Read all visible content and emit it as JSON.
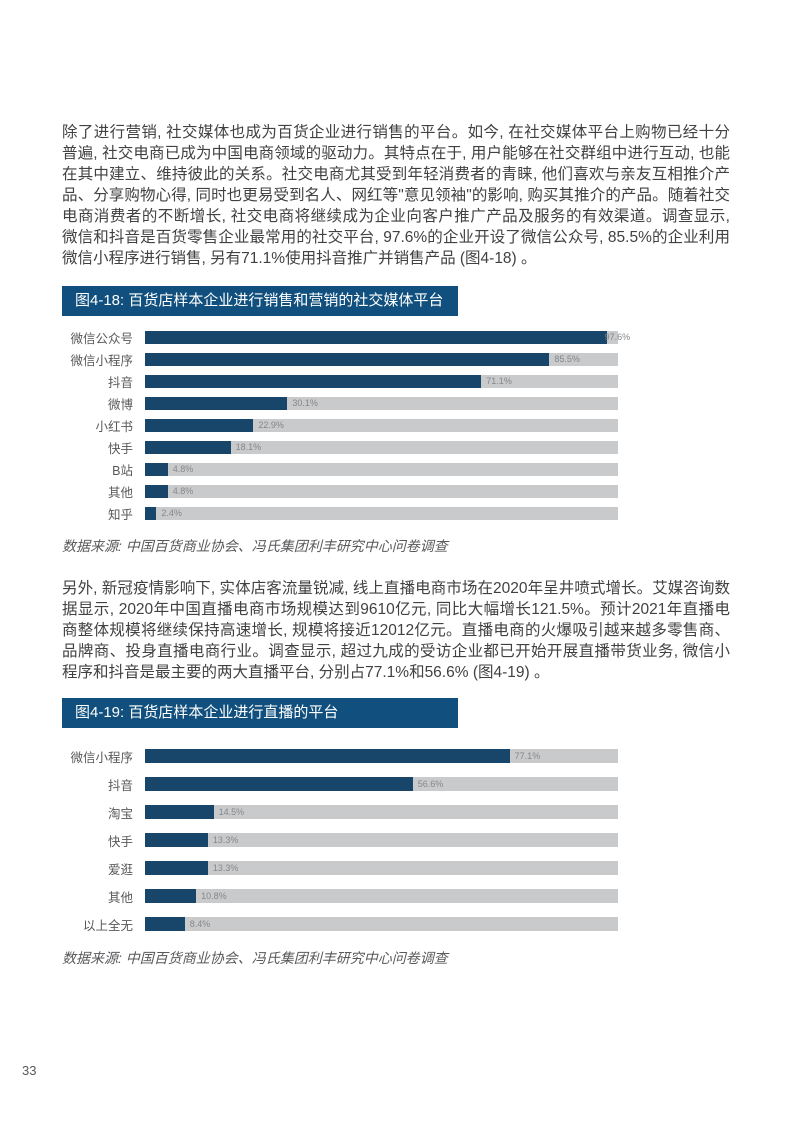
{
  "page": {
    "number": "33",
    "paragraph_1": "除了进行营销, 社交媒体也成为百货企业进行销售的平台。如今, 在社交媒体平台上购物已经十分普遍, 社交电商已成为中国电商领域的驱动力。其特点在于, 用户能够在社交群组中进行互动, 也能在其中建立、维持彼此的关系。社交电商尤其受到年轻消费者的青睐, 他们喜欢与亲友互相推介产品、分享购物心得, 同时也更易受到名人、网红等\"意见领袖\"的影响, 购买其推介的产品。随着社交电商消费者的不断增长, 社交电商将继续成为企业向客户推广产品及服务的有效渠道。调查显示, 微信和抖音是百货零售企业最常用的社交平台, 97.6%的企业开设了微信公众号, 85.5%的企业利用微信小程序进行销售, 另有71.1%使用抖音推广并销售产品 (图4-18) 。",
    "paragraph_2": "另外, 新冠疫情影响下, 实体店客流量锐减, 线上直播电商市场在2020年呈井喷式增长。艾媒咨询数据显示, 2020年中国直播电商市场规模达到9610亿元, 同比大幅增长121.5%。预计2021年直播电商整体规模将继续保持高速增长, 规模将接近12012亿元。直播电商的火爆吸引越来越多零售商、品牌商、投身直播电商行业。调查显示, 超过九成的受访企业都已开始开展直播带货业务, 微信小程序和抖音是最主要的两大直播平台, 分别占77.1%和56.6% (图4-19) 。"
  },
  "colors": {
    "title_bar_bg": "#11507e",
    "bar_fill": "#17466a",
    "bar_track": "#c9cacb"
  },
  "chart_data": [
    {
      "type": "bar",
      "orientation": "horizontal",
      "title": "图4-18: 百货店样本企业进行销售和营销的社交媒体平台",
      "categories": [
        "微信公众号",
        "微信小程序",
        "抖音",
        "微博",
        "小红书",
        "快手",
        "B站",
        "其他",
        "知乎"
      ],
      "values": [
        97.6,
        85.5,
        71.1,
        30.1,
        22.9,
        18.1,
        4.8,
        4.8,
        2.4
      ],
      "value_labels": [
        "97.6%",
        "85.5%",
        "71.1%",
        "30.1%",
        "22.9%",
        "18.1%",
        "4.8%",
        "4.8%",
        "2.4%"
      ],
      "xlim": [
        0,
        100
      ],
      "grid": false,
      "legend": "none",
      "source": "数据来源: 中国百货商业协会、冯氏集团利丰研究中心问卷调查"
    },
    {
      "type": "bar",
      "orientation": "horizontal",
      "title": "图4-19: 百货店样本企业进行直播的平台",
      "categories": [
        "微信小程序",
        "抖音",
        "淘宝",
        "快手",
        "爱逛",
        "其他",
        "以上全无"
      ],
      "values": [
        77.1,
        56.6,
        14.5,
        13.3,
        13.3,
        10.8,
        8.4
      ],
      "value_labels": [
        "77.1%",
        "56.6%",
        "14.5%",
        "13.3%",
        "13.3%",
        "10.8%",
        "8.4%"
      ],
      "xlim": [
        0,
        100
      ],
      "grid": false,
      "legend": "none",
      "source": "数据来源: 中国百货商业协会、冯氏集团利丰研究中心问卷调查"
    }
  ]
}
